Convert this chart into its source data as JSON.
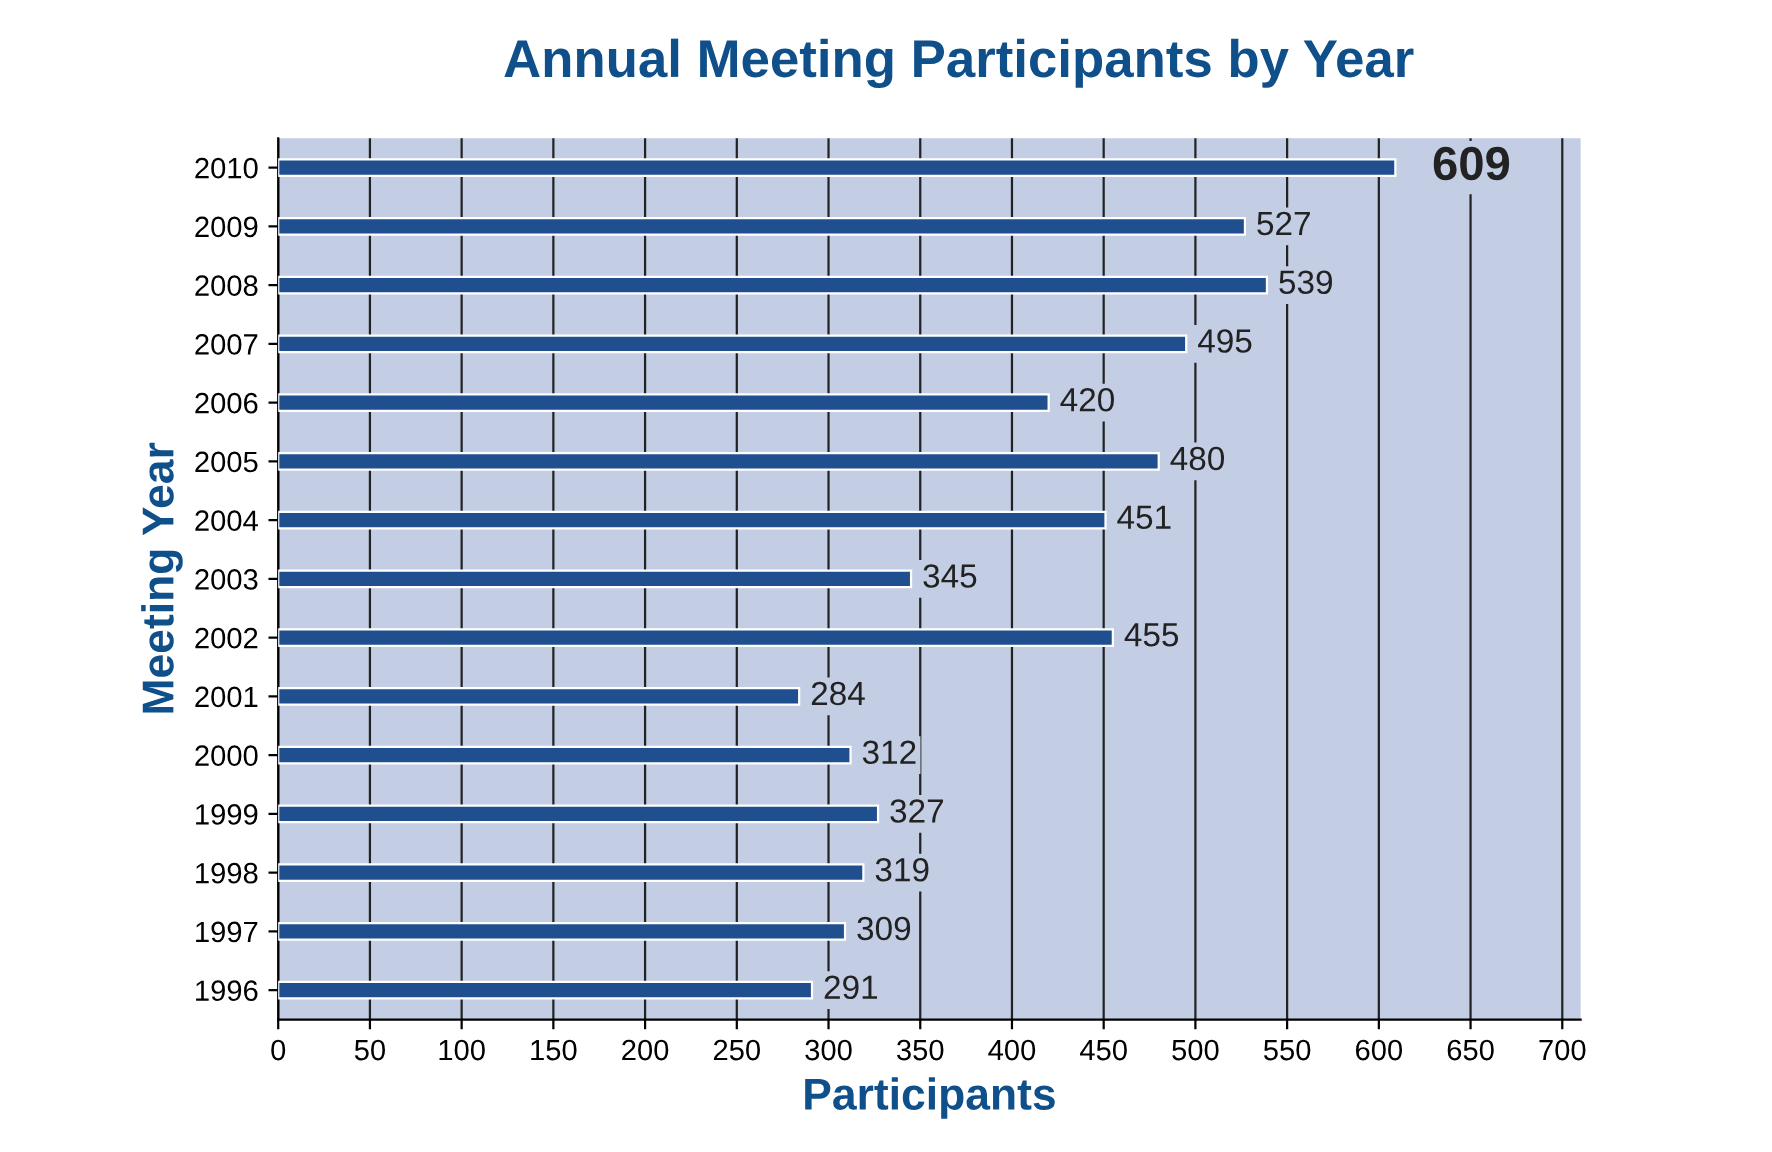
{
  "chart_data": {
    "type": "bar",
    "orientation": "horizontal",
    "title": "Annual Meeting Participants by Year",
    "xlabel": "Participants",
    "ylabel": "Meeting Year",
    "categories": [
      "2010",
      "2009",
      "2008",
      "2007",
      "2006",
      "2005",
      "2004",
      "2003",
      "2002",
      "2001",
      "2000",
      "1999",
      "1998",
      "1997",
      "1996"
    ],
    "values": [
      609,
      527,
      539,
      495,
      420,
      480,
      451,
      345,
      455,
      284,
      312,
      327,
      319,
      309,
      291
    ],
    "color": "#1f4f8f",
    "data_labels": true,
    "xlim": [
      0,
      710
    ],
    "xticks": [
      0,
      50,
      100,
      150,
      200,
      250,
      300,
      350,
      400,
      450,
      500,
      550,
      600,
      650,
      700
    ],
    "grid": "x"
  }
}
